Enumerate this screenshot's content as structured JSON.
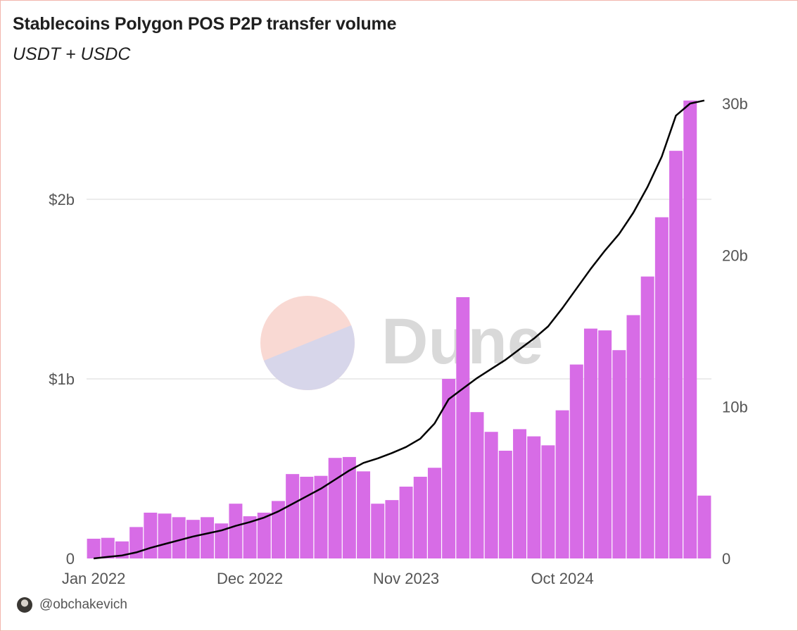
{
  "header": {
    "title": "Stablecoins Polygon POS P2P transfer volume",
    "subtitle": "USDT + USDC"
  },
  "watermark": {
    "text": "Dune"
  },
  "author": {
    "handle": "@obchakevich"
  },
  "colors": {
    "bar": "#d76ce6",
    "line": "#000000",
    "grid": "#e6e6e6",
    "axis_text": "#555555",
    "logo_top": "#f9d9d3",
    "logo_bottom": "#d7d6ea",
    "watermark": "#d9d9d9"
  },
  "chart_data": {
    "type": "bar",
    "title": "Stablecoins Polygon POS P2P transfer volume",
    "subtitle": "USDT + USDC",
    "x_ticks": [
      "Jan 2022",
      "Dec 2022",
      "Nov 2023",
      "Oct 2024"
    ],
    "x_tick_index": [
      0,
      11,
      22,
      33
    ],
    "y_left": {
      "ticks": [
        "0",
        "$1b",
        "$2b"
      ],
      "tick_values": [
        0,
        1,
        2
      ],
      "range": [
        0,
        2.55
      ],
      "unit": "billions USD"
    },
    "y_right": {
      "ticks": [
        "0",
        "10b",
        "20b",
        "30b"
      ],
      "tick_values": [
        0,
        10,
        20,
        30
      ],
      "range": [
        0,
        30
      ],
      "unit": "billions USD"
    },
    "grid": true,
    "series": [
      {
        "type": "bar",
        "axis": "left",
        "values": [
          0.11,
          0.115,
          0.095,
          0.175,
          0.255,
          0.25,
          0.23,
          0.215,
          0.23,
          0.195,
          0.305,
          0.235,
          0.255,
          0.32,
          0.47,
          0.455,
          0.46,
          0.56,
          0.565,
          0.485,
          0.305,
          0.325,
          0.4,
          0.455,
          0.505,
          1.0,
          1.455,
          0.815,
          0.705,
          0.6,
          0.72,
          0.68,
          0.63,
          0.825,
          1.08,
          1.28,
          1.27,
          1.16,
          1.355,
          1.57,
          1.9,
          2.27,
          2.55,
          0.35
        ]
      },
      {
        "type": "line",
        "axis": "right",
        "values": [
          0.0,
          0.1,
          0.2,
          0.4,
          0.7,
          0.95,
          1.2,
          1.45,
          1.65,
          1.85,
          2.15,
          2.4,
          2.7,
          3.1,
          3.6,
          4.1,
          4.6,
          5.2,
          5.8,
          6.3,
          6.6,
          6.95,
          7.35,
          7.9,
          8.9,
          10.5,
          11.2,
          11.9,
          12.5,
          13.1,
          13.8,
          14.5,
          15.3,
          16.5,
          17.8,
          19.1,
          20.3,
          21.4,
          22.8,
          24.5,
          26.5,
          29.2,
          30.0,
          30.2
        ]
      }
    ]
  }
}
